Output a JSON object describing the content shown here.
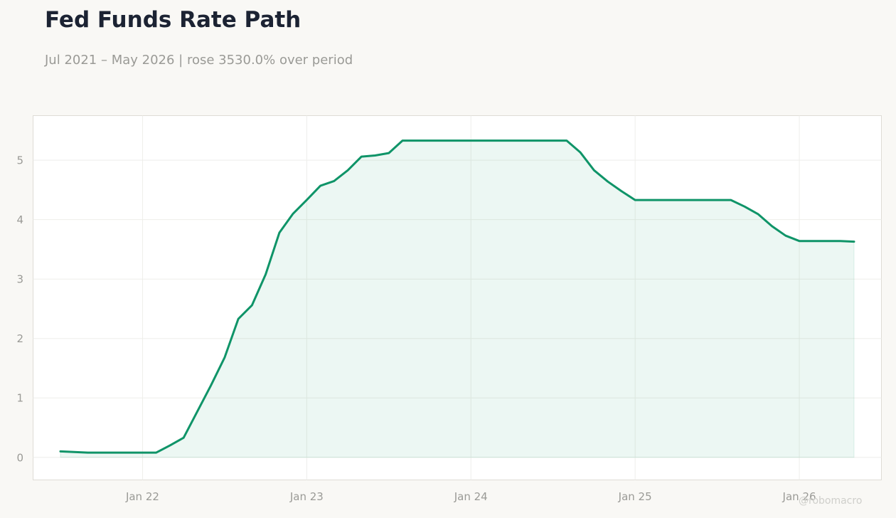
{
  "header": {
    "title": "Fed Funds Rate Path",
    "subtitle": "Jul 2021 – May 2026 | rose 3530.0% over period"
  },
  "watermark": "@robomacro",
  "colors": {
    "line": "#0f9468",
    "fill": "#0f9468",
    "background": "#f9f8f5",
    "plot_background": "#ffffff",
    "grid": "#eeeeea",
    "frame": "#dedcd6",
    "tick_text": "#9a9a96"
  },
  "chart_data": {
    "type": "area",
    "title": "Fed Funds Rate Path",
    "xlabel": "",
    "ylabel": "",
    "grid": true,
    "x_ticks": [
      "Jan 22",
      "Jan 23",
      "Jan 24",
      "Jan 25",
      "Jan 26"
    ],
    "y_ticks": [
      0,
      1,
      2,
      3,
      4,
      5
    ],
    "xlim": [
      "2021-05",
      "2026-07"
    ],
    "ylim": [
      -0.38,
      5.75
    ],
    "series": [
      {
        "x": [
          "2021-07",
          "2021-09",
          "2021-10",
          "2021-11",
          "2021-12",
          "2022-01",
          "2022-02",
          "2022-03",
          "2022-04",
          "2022-05",
          "2022-06",
          "2022-07",
          "2022-08",
          "2022-09",
          "2022-10",
          "2022-11",
          "2022-12",
          "2023-01",
          "2023-02",
          "2023-03",
          "2023-04",
          "2023-05",
          "2023-06",
          "2023-07",
          "2023-08",
          "2023-09",
          "2023-10",
          "2023-11",
          "2023-12",
          "2024-01",
          "2024-02",
          "2024-03",
          "2024-04",
          "2024-05",
          "2024-06",
          "2024-07",
          "2024-08",
          "2024-09",
          "2024-10",
          "2024-11",
          "2024-12",
          "2025-01",
          "2025-02",
          "2025-03",
          "2025-04",
          "2025-05",
          "2025-06",
          "2025-07",
          "2025-08",
          "2025-09",
          "2025-10",
          "2025-11",
          "2025-12",
          "2026-01",
          "2026-02",
          "2026-03",
          "2026-04",
          "2026-05"
        ],
        "values": [
          0.1,
          0.08,
          0.08,
          0.08,
          0.08,
          0.08,
          0.08,
          0.2,
          0.33,
          0.77,
          1.21,
          1.68,
          2.33,
          2.56,
          3.08,
          3.78,
          4.1,
          4.33,
          4.57,
          4.65,
          4.83,
          5.06,
          5.08,
          5.12,
          5.33,
          5.33,
          5.33,
          5.33,
          5.33,
          5.33,
          5.33,
          5.33,
          5.33,
          5.33,
          5.33,
          5.33,
          5.33,
          5.13,
          4.83,
          4.64,
          4.48,
          4.33,
          4.33,
          4.33,
          4.33,
          4.33,
          4.33,
          4.33,
          4.33,
          4.22,
          4.09,
          3.89,
          3.73,
          3.64,
          3.64,
          3.64,
          3.64,
          3.63
        ]
      }
    ]
  }
}
